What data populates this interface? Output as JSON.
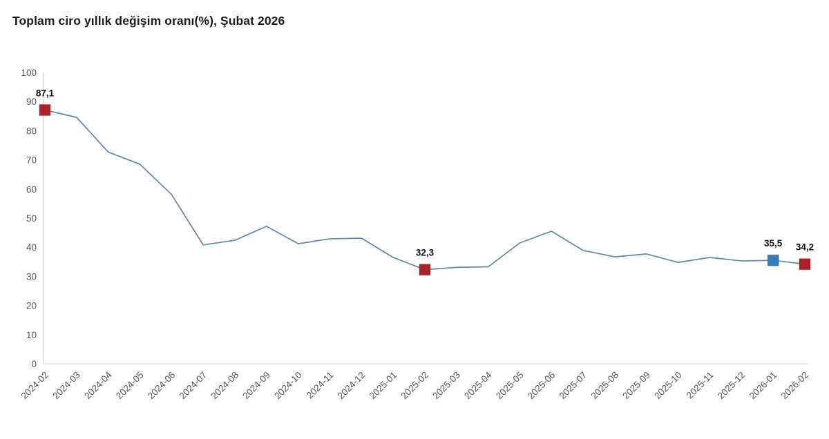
{
  "title": {
    "text": "Toplam ciro yıllık değişim oranı(%), Şubat 2026"
  },
  "chart_data": {
    "type": "line",
    "title": "Toplam ciro yıllık değişim oranı(%), Şubat 2026",
    "categories": [
      "2024-02",
      "2024-03",
      "2024-04",
      "2024-05",
      "2024-06",
      "2024-07",
      "2024-08",
      "2024-09",
      "2024-10",
      "2024-11",
      "2024-12",
      "2025-01",
      "2025-02",
      "2025-03",
      "2025-04",
      "2025-05",
      "2025-06",
      "2025-07",
      "2025-08",
      "2025-09",
      "2025-10",
      "2025-11",
      "2025-12",
      "2026-01",
      "2026-02"
    ],
    "values": [
      87.1,
      84.6,
      72.7,
      68.5,
      58.1,
      40.8,
      42.4,
      47.2,
      41.2,
      42.9,
      43.1,
      36.5,
      32.3,
      33.1,
      33.3,
      41.5,
      45.5,
      38.9,
      36.7,
      37.7,
      34.8,
      36.5,
      35.3,
      35.5,
      34.2
    ],
    "xlabel": "",
    "ylabel": "",
    "ylim": [
      0,
      100
    ],
    "y_ticks": [
      0,
      10,
      20,
      30,
      40,
      50,
      60,
      70,
      80,
      90,
      100
    ],
    "grid": false,
    "legend": false,
    "x_label_rotation_deg": -45,
    "line_color": "#5b87ab",
    "axis_line_color": "#d4d4d4",
    "tick_label_color": "#555555",
    "data_label_color": "#111111",
    "markers": [
      {
        "category": "2024-02",
        "index": 0,
        "label": "87,1",
        "color": "#b02127"
      },
      {
        "category": "2025-02",
        "index": 12,
        "label": "32,3",
        "color": "#b02127"
      },
      {
        "category": "2026-01",
        "index": 23,
        "label": "35,5",
        "color": "#2f7ebe"
      },
      {
        "category": "2026-02",
        "index": 24,
        "label": "34,2",
        "color": "#b02127"
      }
    ]
  }
}
